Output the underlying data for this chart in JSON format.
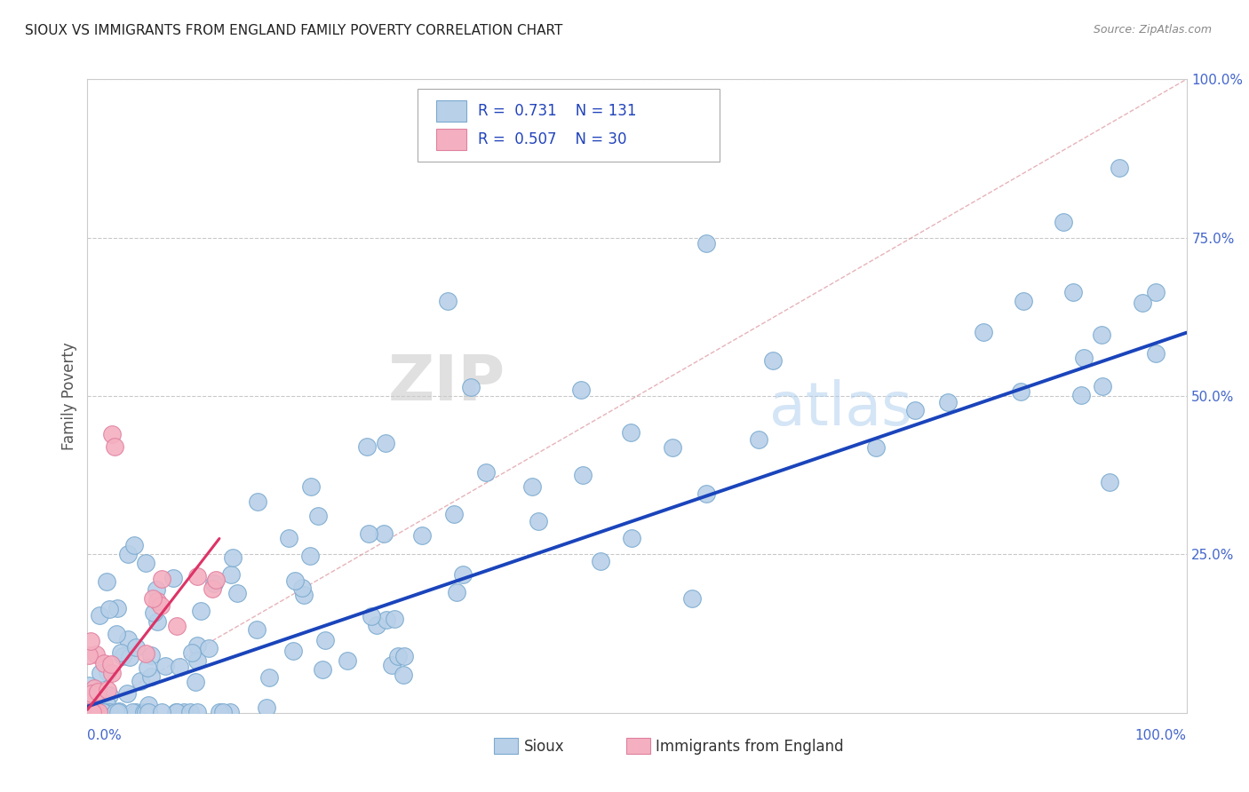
{
  "title": "SIOUX VS IMMIGRANTS FROM ENGLAND FAMILY POVERTY CORRELATION CHART",
  "source": "Source: ZipAtlas.com",
  "ylabel": "Family Poverty",
  "legend_label1": "Sioux",
  "legend_label2": "Immigrants from England",
  "r1": 0.731,
  "n1": 131,
  "r2": 0.507,
  "n2": 30,
  "color_sioux_face": "#b8d0e8",
  "color_sioux_edge": "#7aaad0",
  "color_england_face": "#f4b0c0",
  "color_england_edge": "#e080a0",
  "color_line_sioux": "#1a44bb",
  "color_line_england": "#dd3366",
  "color_ref_line": "#e0a0a8",
  "watermark_zip": "ZIP",
  "watermark_atlas": "atlas"
}
